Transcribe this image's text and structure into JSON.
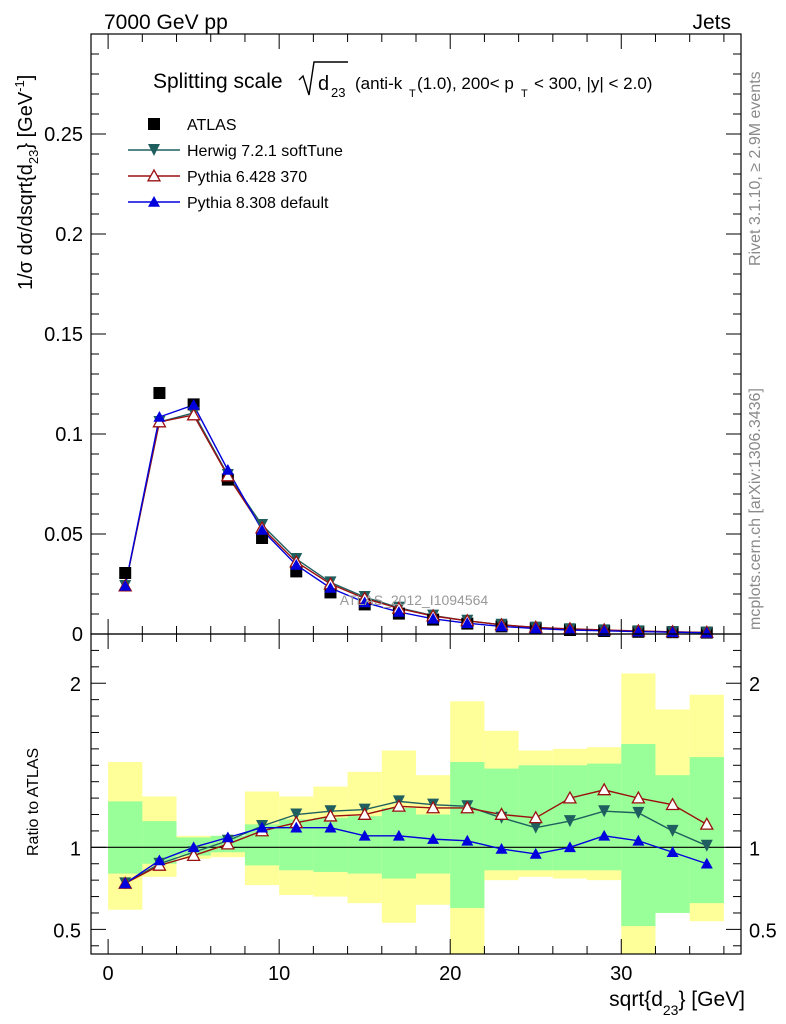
{
  "header": {
    "left": "7000 GeV pp",
    "right": "Jets"
  },
  "side_labels": {
    "rivet": "Rivet 3.1.10, ≥ 2.9M events",
    "mcplots": "mcplots.cern.ch [arXiv:1306.3436]"
  },
  "chart_data": [
    {
      "type": "line",
      "title_main": "Splitting scale",
      "title_sqrt": "d",
      "title_sqrt_sub": "23",
      "title_rest_1": "(anti-k",
      "title_rest_sub1": "T",
      "title_rest_2": "(1.0), 200< p",
      "title_rest_sub2": "T",
      "title_rest_3": "< 300, |y| < 2.0)",
      "ylabel_a": "1/σ dσ/dsqrt{d",
      "ylabel_sub": "23",
      "ylabel_b": "} [GeV",
      "ylabel_sup": "-1",
      "ylabel_c": "]",
      "watermark": "ATLAS_2012_I1094564",
      "xlim": [
        -1,
        37
      ],
      "ylim": [
        0,
        0.3
      ],
      "yticks": [
        0,
        0.05,
        0.1,
        0.15,
        0.2,
        0.25
      ],
      "ytick_labels": [
        "0",
        "0.05",
        "0.1",
        "0.15",
        "0.2",
        "0.25"
      ],
      "legend_position": "top-left",
      "x": [
        1,
        3,
        5,
        7,
        9,
        11,
        13,
        15,
        17,
        19,
        21,
        23,
        25,
        27,
        29,
        31,
        33,
        35
      ],
      "series": [
        {
          "name": "ATLAS",
          "color": "#000000",
          "marker": "square",
          "values": [
            0.0305,
            0.1205,
            0.1148,
            0.0772,
            0.048,
            0.0313,
            0.0208,
            0.0148,
            0.0102,
            0.0072,
            0.0052,
            0.0038,
            0.0028,
            0.002,
            0.0015,
            0.0011,
            0.0009,
            0.0007
          ]
        },
        {
          "name": "Herwig 7.2.1 softTune",
          "color": "#1f5f5f",
          "marker": "triangle-down",
          "values": [
            0.024,
            0.106,
            0.1105,
            0.0795,
            0.0545,
            0.0375,
            0.0258,
            0.0185,
            0.0131,
            0.0092,
            0.0066,
            0.0046,
            0.0032,
            0.0024,
            0.0018,
            0.0013,
            0.001,
            0.0007
          ]
        },
        {
          "name": "Pythia 6.428 370",
          "color": "#9a1010",
          "marker": "triangle-open",
          "values": [
            0.024,
            0.106,
            0.1095,
            0.079,
            0.053,
            0.036,
            0.025,
            0.0178,
            0.0128,
            0.009,
            0.0066,
            0.0046,
            0.0033,
            0.0026,
            0.002,
            0.0015,
            0.0011,
            0.0008
          ]
        },
        {
          "name": "Pythia 8.308 default",
          "color": "#0000dd",
          "marker": "triangle-up",
          "values": [
            0.024,
            0.1085,
            0.1145,
            0.082,
            0.052,
            0.0345,
            0.023,
            0.0158,
            0.011,
            0.0076,
            0.0054,
            0.0038,
            0.0027,
            0.002,
            0.0016,
            0.0012,
            0.0009,
            0.0006
          ]
        }
      ]
    },
    {
      "type": "line",
      "ylabel": "Ratio to ATLAS",
      "xlabel_a": "sqrt{d",
      "xlabel_sub": "23",
      "xlabel_b": "} [GeV]",
      "xlim": [
        -1,
        37
      ],
      "ylim": [
        0.35,
        2.3
      ],
      "xticks": [
        0,
        10,
        20,
        30
      ],
      "xtick_labels": [
        "0",
        "10",
        "20",
        "30"
      ],
      "yticks": [
        0.5,
        1,
        2
      ],
      "ytick_labels": [
        "0.5",
        "1",
        "2"
      ],
      "reference_line": 1,
      "bin_edges": [
        0,
        2,
        4,
        6,
        8,
        10,
        12,
        14,
        16,
        18,
        20,
        22,
        24,
        26,
        28,
        30,
        32,
        34,
        36
      ],
      "band_inner": {
        "color": "#99ff99",
        "low": [
          0.84,
          0.9,
          0.95,
          0.97,
          0.89,
          0.86,
          0.85,
          0.84,
          0.81,
          0.84,
          0.63,
          0.86,
          0.86,
          0.86,
          0.86,
          0.52,
          0.6,
          0.66
        ],
        "high": [
          1.28,
          1.16,
          1.06,
          1.07,
          1.14,
          1.17,
          1.18,
          1.19,
          1.24,
          1.2,
          1.52,
          1.48,
          1.5,
          1.5,
          1.51,
          1.63,
          1.44,
          1.55
        ]
      },
      "band_outer": {
        "color": "#ffff99",
        "low": [
          0.62,
          0.82,
          0.93,
          0.94,
          0.77,
          0.71,
          0.7,
          0.66,
          0.54,
          0.65,
          0.35,
          0.8,
          0.82,
          0.81,
          0.8,
          0.35,
          0.71,
          0.55
        ],
        "high": [
          1.52,
          1.31,
          1.07,
          1.07,
          1.34,
          1.31,
          1.37,
          1.46,
          1.59,
          1.44,
          1.89,
          1.71,
          1.59,
          1.6,
          1.61,
          2.06,
          1.84,
          1.93
        ]
      },
      "series": [
        {
          "name": "Herwig 7.2.1 softTune",
          "color": "#1f5f5f",
          "marker": "triangle-down",
          "values": [
            0.78,
            0.9,
            0.97,
            1.04,
            1.13,
            1.2,
            1.22,
            1.23,
            1.28,
            1.26,
            1.25,
            1.18,
            1.12,
            1.16,
            1.22,
            1.21,
            1.1,
            1.01
          ]
        },
        {
          "name": "Pythia 6.428 370",
          "color": "#9a1010",
          "marker": "triangle-open",
          "values": [
            0.78,
            0.89,
            0.95,
            1.02,
            1.1,
            1.15,
            1.19,
            1.2,
            1.25,
            1.24,
            1.24,
            1.2,
            1.18,
            1.3,
            1.35,
            1.3,
            1.26,
            1.14
          ]
        },
        {
          "name": "Pythia 8.308 default",
          "color": "#0000dd",
          "marker": "triangle-up",
          "values": [
            0.78,
            0.92,
            1.0,
            1.06,
            1.12,
            1.12,
            1.12,
            1.07,
            1.07,
            1.05,
            1.04,
            0.99,
            0.96,
            1.0,
            1.07,
            1.04,
            0.97,
            0.9
          ]
        }
      ]
    }
  ]
}
